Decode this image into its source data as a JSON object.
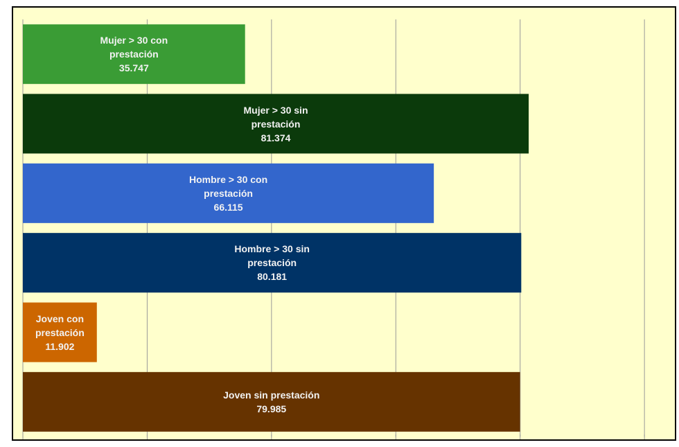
{
  "chart_data": {
    "type": "barh",
    "categories": [
      "Mujer > 30 con prestación",
      "Mujer > 30 sin prestación",
      "Hombre > 30 con prestación",
      "Hombre > 30 sin prestación",
      "Joven con prestación",
      "Joven sin prestación"
    ],
    "values": [
      35747,
      81374,
      66115,
      80181,
      11902,
      79985
    ],
    "value_labels": [
      "35.747",
      "81.374",
      "66.115",
      "80.181",
      "11.902",
      "79.985"
    ],
    "colors": [
      "#3a9c35",
      "#0b3a0b",
      "#3366cc",
      "#003366",
      "#cc6600",
      "#663300"
    ],
    "xlim": [
      0,
      105000
    ],
    "xticks": [
      0,
      20000,
      40000,
      60000,
      80000,
      100000
    ],
    "grid": true
  }
}
